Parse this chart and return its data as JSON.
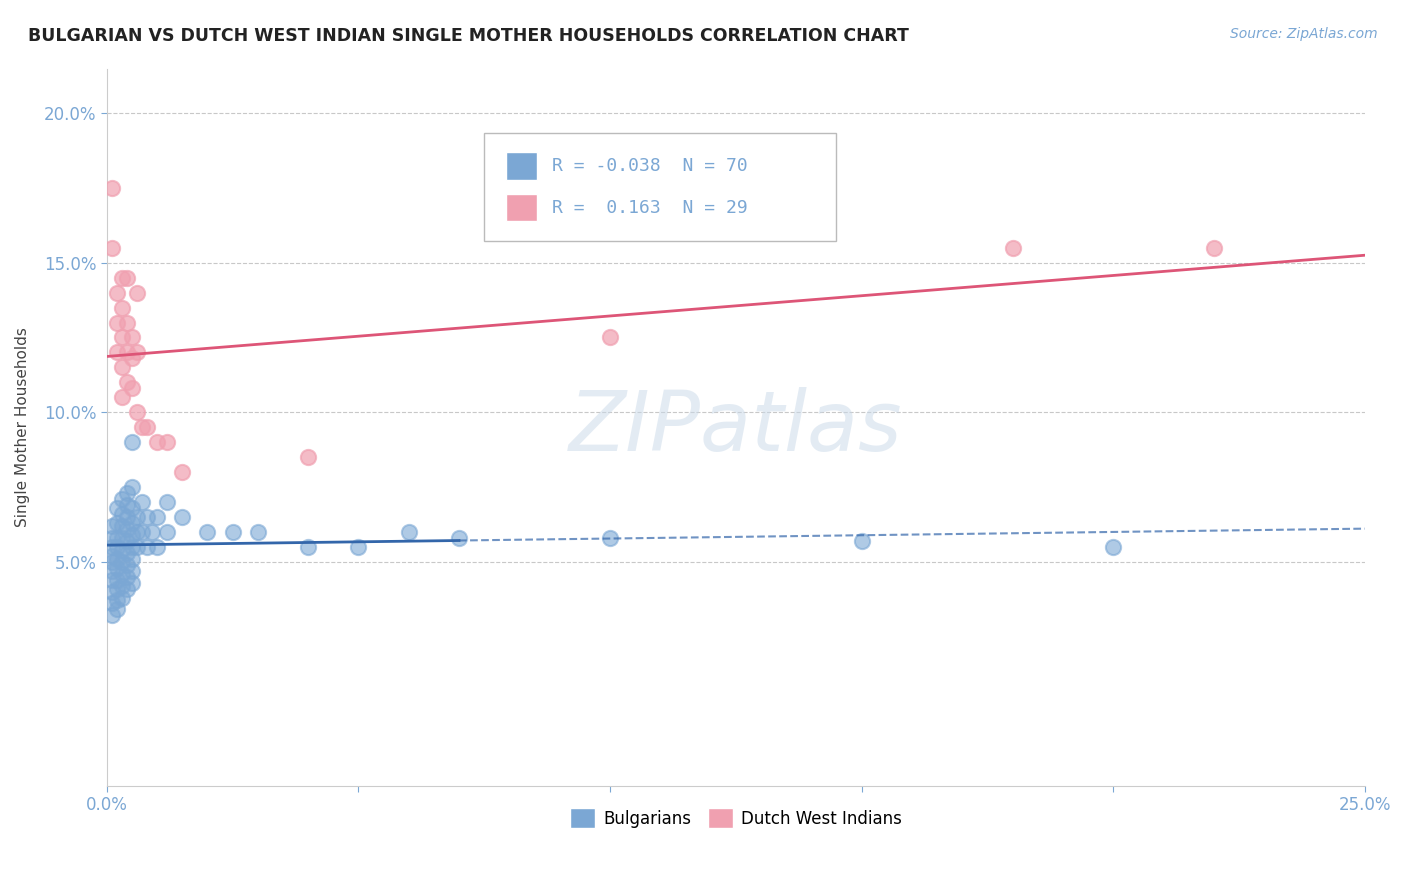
{
  "title": "BULGARIAN VS DUTCH WEST INDIAN SINGLE MOTHER HOUSEHOLDS CORRELATION CHART",
  "source": "Source: ZipAtlas.com",
  "ylabel": "Single Mother Households",
  "xlabel": "",
  "xlim": [
    0.0,
    0.25
  ],
  "ylim": [
    -0.025,
    0.215
  ],
  "yticks": [
    0.05,
    0.1,
    0.15,
    0.2
  ],
  "ytick_labels": [
    "5.0%",
    "10.0%",
    "15.0%",
    "20.0%"
  ],
  "xticks": [
    0.0,
    0.05,
    0.1,
    0.15,
    0.2,
    0.25
  ],
  "xtick_labels": [
    "0.0%",
    "",
    "",
    "",
    "",
    "25.0%"
  ],
  "bg_color": "#ffffff",
  "grid_color": "#c8c8c8",
  "blue_color": "#7ba7d4",
  "pink_color": "#f0a0b0",
  "blue_line_color": "#3366aa",
  "pink_line_color": "#dd5577",
  "R_blue": -0.038,
  "N_blue": 70,
  "R_pink": 0.163,
  "N_pink": 29,
  "blue_scatter": [
    [
      0.001,
      0.062
    ],
    [
      0.001,
      0.058
    ],
    [
      0.001,
      0.055
    ],
    [
      0.001,
      0.052
    ],
    [
      0.001,
      0.05
    ],
    [
      0.001,
      0.047
    ],
    [
      0.001,
      0.044
    ],
    [
      0.001,
      0.04
    ],
    [
      0.001,
      0.036
    ],
    [
      0.001,
      0.032
    ],
    [
      0.002,
      0.068
    ],
    [
      0.002,
      0.063
    ],
    [
      0.002,
      0.058
    ],
    [
      0.002,
      0.055
    ],
    [
      0.002,
      0.051
    ],
    [
      0.002,
      0.048
    ],
    [
      0.002,
      0.044
    ],
    [
      0.002,
      0.041
    ],
    [
      0.002,
      0.037
    ],
    [
      0.002,
      0.034
    ],
    [
      0.003,
      0.071
    ],
    [
      0.003,
      0.066
    ],
    [
      0.003,
      0.062
    ],
    [
      0.003,
      0.058
    ],
    [
      0.003,
      0.054
    ],
    [
      0.003,
      0.05
    ],
    [
      0.003,
      0.046
    ],
    [
      0.003,
      0.042
    ],
    [
      0.003,
      0.038
    ],
    [
      0.004,
      0.073
    ],
    [
      0.004,
      0.069
    ],
    [
      0.004,
      0.065
    ],
    [
      0.004,
      0.061
    ],
    [
      0.004,
      0.057
    ],
    [
      0.004,
      0.053
    ],
    [
      0.004,
      0.049
    ],
    [
      0.004,
      0.045
    ],
    [
      0.004,
      0.041
    ],
    [
      0.005,
      0.09
    ],
    [
      0.005,
      0.075
    ],
    [
      0.005,
      0.068
    ],
    [
      0.005,
      0.063
    ],
    [
      0.005,
      0.059
    ],
    [
      0.005,
      0.055
    ],
    [
      0.005,
      0.051
    ],
    [
      0.005,
      0.047
    ],
    [
      0.005,
      0.043
    ],
    [
      0.006,
      0.065
    ],
    [
      0.006,
      0.06
    ],
    [
      0.006,
      0.055
    ],
    [
      0.007,
      0.07
    ],
    [
      0.007,
      0.06
    ],
    [
      0.008,
      0.065
    ],
    [
      0.008,
      0.055
    ],
    [
      0.009,
      0.06
    ],
    [
      0.01,
      0.065
    ],
    [
      0.01,
      0.055
    ],
    [
      0.012,
      0.07
    ],
    [
      0.012,
      0.06
    ],
    [
      0.015,
      0.065
    ],
    [
      0.02,
      0.06
    ],
    [
      0.025,
      0.06
    ],
    [
      0.03,
      0.06
    ],
    [
      0.04,
      0.055
    ],
    [
      0.05,
      0.055
    ],
    [
      0.06,
      0.06
    ],
    [
      0.07,
      0.058
    ],
    [
      0.1,
      0.058
    ],
    [
      0.15,
      0.057
    ],
    [
      0.2,
      0.055
    ]
  ],
  "pink_scatter": [
    [
      0.001,
      0.175
    ],
    [
      0.001,
      0.155
    ],
    [
      0.002,
      0.14
    ],
    [
      0.002,
      0.13
    ],
    [
      0.002,
      0.12
    ],
    [
      0.003,
      0.145
    ],
    [
      0.003,
      0.135
    ],
    [
      0.003,
      0.125
    ],
    [
      0.003,
      0.115
    ],
    [
      0.003,
      0.105
    ],
    [
      0.004,
      0.145
    ],
    [
      0.004,
      0.13
    ],
    [
      0.004,
      0.12
    ],
    [
      0.004,
      0.11
    ],
    [
      0.005,
      0.125
    ],
    [
      0.005,
      0.118
    ],
    [
      0.005,
      0.108
    ],
    [
      0.006,
      0.14
    ],
    [
      0.006,
      0.12
    ],
    [
      0.006,
      0.1
    ],
    [
      0.007,
      0.095
    ],
    [
      0.008,
      0.095
    ],
    [
      0.01,
      0.09
    ],
    [
      0.012,
      0.09
    ],
    [
      0.015,
      0.08
    ],
    [
      0.04,
      0.085
    ],
    [
      0.1,
      0.125
    ],
    [
      0.18,
      0.155
    ],
    [
      0.22,
      0.155
    ]
  ],
  "watermark": "ZIPatlas",
  "legend_label_blue": "Bulgarians",
  "legend_label_pink": "Dutch West Indians"
}
